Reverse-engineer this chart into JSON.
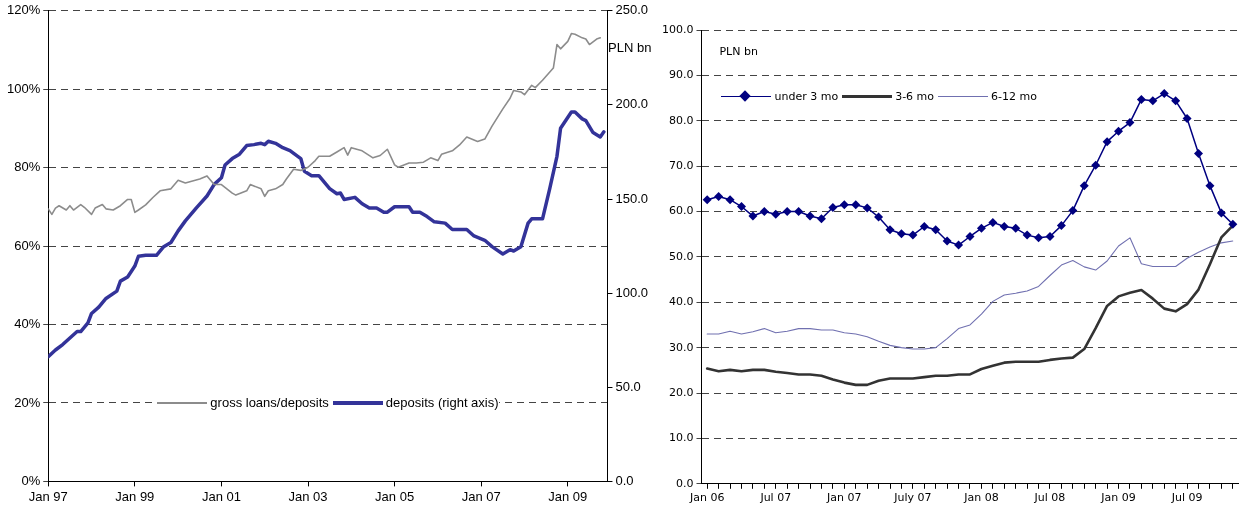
{
  "chart_data": [
    {
      "type": "line",
      "xlim": [
        "1997-01",
        "2009-12"
      ],
      "xticks": [
        {
          "value": "1997-01",
          "label": "Jan 97"
        },
        {
          "value": "1999-01",
          "label": "Jan 99"
        },
        {
          "value": "2001-01",
          "label": "Jan 01"
        },
        {
          "value": "2003-01",
          "label": "Jan 03"
        },
        {
          "value": "2005-01",
          "label": "Jan 05"
        },
        {
          "value": "2007-01",
          "label": "Jan 07"
        },
        {
          "value": "2009-01",
          "label": "Jan 09"
        }
      ],
      "ylim": [
        0,
        120
      ],
      "yticks": [
        {
          "value": 0,
          "label": "0%"
        },
        {
          "value": 20,
          "label": "20%"
        },
        {
          "value": 40,
          "label": "40%"
        },
        {
          "value": 60,
          "label": "60%"
        },
        {
          "value": 80,
          "label": "80%"
        },
        {
          "value": 100,
          "label": "100%"
        },
        {
          "value": 120,
          "label": "120%"
        }
      ],
      "y2lim": [
        0,
        250
      ],
      "y2ticks": [
        {
          "value": 0,
          "label": "0.0"
        },
        {
          "value": 50,
          "label": "50.0"
        },
        {
          "value": 100,
          "label": "100.0"
        },
        {
          "value": 150,
          "label": "150.0"
        },
        {
          "value": 200,
          "label": "200.0"
        },
        {
          "value": 250,
          "label": "250.0"
        }
      ],
      "grid": "y",
      "legend": "bottom",
      "annotations": [
        "PLN bn"
      ],
      "series": [
        {
          "name": "gross loans/deposits",
          "color": "#8c8c8c",
          "x": [
            "1997-01",
            "1997-02",
            "1997-03",
            "1997-04",
            "1997-06",
            "1997-07",
            "1997-08",
            "1997-10",
            "1997-11",
            "1998-01",
            "1998-02",
            "1998-04",
            "1998-05",
            "1998-07",
            "1998-09",
            "1998-11",
            "1998-12",
            "1999-01",
            "1999-02",
            "1999-04",
            "1999-06",
            "1999-08",
            "1999-11",
            "2000-01",
            "2000-03",
            "2000-05",
            "2000-07",
            "2000-09",
            "2000-11",
            "2001-01",
            "2001-04",
            "2001-05",
            "2001-08",
            "2001-09",
            "2001-12",
            "2002-01",
            "2002-02",
            "2002-04",
            "2002-06",
            "2002-07",
            "2002-09",
            "2002-11",
            "2003-01",
            "2003-03",
            "2003-04",
            "2003-07",
            "2003-09",
            "2003-11",
            "2003-12",
            "2004-01",
            "2004-04",
            "2004-07",
            "2004-09",
            "2004-11",
            "2005-01",
            "2005-02",
            "2005-05",
            "2005-07",
            "2005-09",
            "2005-11",
            "2006-01",
            "2006-02",
            "2006-05",
            "2006-07",
            "2006-09",
            "2006-12",
            "2007-02",
            "2007-04",
            "2007-07",
            "2007-09",
            "2007-10",
            "2007-12",
            "2008-01",
            "2008-03",
            "2008-04",
            "2008-06",
            "2008-09",
            "2008-10",
            "2008-11",
            "2009-01",
            "2009-02",
            "2009-03",
            "2009-05",
            "2009-06",
            "2009-07",
            "2009-09",
            "2009-10"
          ],
          "values": [
            69.5,
            68.1,
            69.7,
            70.3,
            69.2,
            70.3,
            69.2,
            70.6,
            69.9,
            68.1,
            69.7,
            70.6,
            69.5,
            69.2,
            70.3,
            71.9,
            71.9,
            68.6,
            69.2,
            70.5,
            72.4,
            74.1,
            74.6,
            76.8,
            76.1,
            76.6,
            77.1,
            77.9,
            75.7,
            75.7,
            73.5,
            73.0,
            74.1,
            75.7,
            74.6,
            72.7,
            74.1,
            74.6,
            75.7,
            77.1,
            79.6,
            79.3,
            80.1,
            81.8,
            82.9,
            82.9,
            84.0,
            85.1,
            83.2,
            85.1,
            84.3,
            82.5,
            83.1,
            84.7,
            80.7,
            80.1,
            81.2,
            81.2,
            81.4,
            82.5,
            81.8,
            83.4,
            84.3,
            85.8,
            87.8,
            86.7,
            87.3,
            90.6,
            95.0,
            97.7,
            99.7,
            99.3,
            98.6,
            101.0,
            100.4,
            102.3,
            105.4,
            111.4,
            110.3,
            112.2,
            114.2,
            114.0,
            113.1,
            112.8,
            111.4,
            112.8,
            113.1
          ]
        },
        {
          "name": "deposits (right axis)",
          "color": "#333399",
          "axis": "y2",
          "x": [
            "1997-01",
            "1997-03",
            "1997-05",
            "1997-07",
            "1997-09",
            "1997-10",
            "1997-12",
            "1998-01",
            "1998-03",
            "1998-05",
            "1998-08",
            "1998-09",
            "1998-11",
            "1999-01",
            "1999-02",
            "1999-04",
            "1999-07",
            "1999-09",
            "1999-11",
            "2000-01",
            "2000-03",
            "2000-06",
            "2000-09",
            "2000-11",
            "2001-01",
            "2001-02",
            "2001-04",
            "2001-06",
            "2001-08",
            "2001-10",
            "2001-12",
            "2002-01",
            "2002-02",
            "2002-04",
            "2002-06",
            "2002-08",
            "2002-11",
            "2002-12",
            "2003-02",
            "2003-04",
            "2003-07",
            "2003-09",
            "2003-10",
            "2003-11",
            "2004-02",
            "2004-04",
            "2004-06",
            "2004-08",
            "2004-10",
            "2004-11",
            "2005-01",
            "2005-03",
            "2005-05",
            "2005-06",
            "2005-08",
            "2005-10",
            "2005-12",
            "2006-03",
            "2006-05",
            "2006-09",
            "2006-11",
            "2007-02",
            "2007-04",
            "2007-07",
            "2007-09",
            "2007-10",
            "2007-12",
            "2008-02",
            "2008-03",
            "2008-06",
            "2008-08",
            "2008-10",
            "2008-11",
            "2009-02",
            "2009-03",
            "2009-05",
            "2009-06",
            "2009-08",
            "2009-10",
            "2009-11"
          ],
          "values": [
            66.3,
            69.8,
            72.7,
            76.2,
            79.6,
            79.6,
            84.2,
            89.2,
            92.6,
            97.2,
            101.1,
            106.4,
            108.6,
            114.4,
            119.6,
            120.1,
            120.1,
            124.7,
            126.9,
            133.1,
            138.4,
            145.2,
            151.6,
            157.8,
            161.3,
            168.1,
            171.5,
            173.8,
            178.4,
            178.9,
            179.6,
            178.9,
            180.7,
            179.6,
            177.3,
            175.7,
            171.5,
            164.7,
            162.4,
            162.4,
            155.5,
            152.8,
            153.2,
            149.8,
            150.9,
            147.5,
            145.2,
            145.2,
            143.0,
            143.0,
            145.9,
            145.9,
            145.9,
            143.0,
            143.0,
            140.7,
            137.9,
            137.2,
            133.8,
            133.8,
            130.4,
            128.1,
            124.7,
            120.8,
            123.1,
            122.4,
            124.7,
            137.2,
            139.5,
            139.5,
            155.5,
            172.7,
            187.6,
            196.2,
            196.2,
            192.6,
            191.7,
            185.3,
            183.0,
            185.7
          ]
        }
      ]
    },
    {
      "type": "line",
      "categories": [
        "Jan 06",
        null,
        null,
        null,
        null,
        null,
        "Jul 07",
        null,
        null,
        null,
        null,
        null,
        "Jan 07",
        null,
        null,
        null,
        null,
        null,
        "July 07",
        null,
        null,
        null,
        null,
        null,
        "Jan 08",
        null,
        null,
        null,
        null,
        null,
        "Jul 08",
        null,
        null,
        null,
        null,
        null,
        "Jan 09",
        null,
        null,
        null,
        null,
        null,
        "Jul 09",
        null,
        null,
        null,
        null
      ],
      "ylim": [
        0,
        100
      ],
      "yticks": [
        {
          "value": 0,
          "label": "0.0"
        },
        {
          "value": 10,
          "label": "10.0"
        },
        {
          "value": 20,
          "label": "20.0"
        },
        {
          "value": 30,
          "label": "30.0"
        },
        {
          "value": 40,
          "label": "40.0"
        },
        {
          "value": 50,
          "label": "50.0"
        },
        {
          "value": 60,
          "label": "60.0"
        },
        {
          "value": 70,
          "label": "70.0"
        },
        {
          "value": 80,
          "label": "80.0"
        },
        {
          "value": 90,
          "label": "90.0"
        },
        {
          "value": 100,
          "label": "100.0"
        }
      ],
      "grid": "y",
      "legend": "top left",
      "annotations": [
        "PLN bn"
      ],
      "series": [
        {
          "name": "under 3 mo",
          "color": "#000080",
          "marker": "diamond",
          "values": [
            62.6,
            63.3,
            62.6,
            61.1,
            59.0,
            60.0,
            59.4,
            60.0,
            60.0,
            59.0,
            58.4,
            60.9,
            61.5,
            61.5,
            60.8,
            58.8,
            56.0,
            55.1,
            54.8,
            56.7,
            56.0,
            53.5,
            52.6,
            54.5,
            56.3,
            57.6,
            56.7,
            56.3,
            54.8,
            54.2,
            54.5,
            56.9,
            60.2,
            65.7,
            70.2,
            75.4,
            77.7,
            79.6,
            84.7,
            84.4,
            86.0,
            84.4,
            80.5,
            72.8,
            65.7,
            59.7,
            57.2
          ]
        },
        {
          "name": "3-6 mo",
          "color": "#333333",
          "values": [
            25.4,
            24.8,
            25.1,
            24.8,
            25.1,
            25.1,
            24.7,
            24.4,
            24.1,
            24.1,
            23.8,
            23.0,
            22.3,
            21.8,
            21.8,
            22.7,
            23.2,
            23.2,
            23.2,
            23.5,
            23.8,
            23.8,
            24.1,
            24.1,
            25.3,
            26.0,
            26.7,
            26.9,
            26.9,
            26.9,
            27.3,
            27.6,
            27.8,
            29.7,
            34.3,
            39.2,
            41.3,
            42.1,
            42.7,
            40.8,
            38.6,
            38.0,
            39.6,
            42.8,
            48.4,
            54.3,
            56.9
          ]
        },
        {
          "name": "6-12 mo",
          "color": "#7070b0",
          "values": [
            33.0,
            33.0,
            33.6,
            33.0,
            33.5,
            34.2,
            33.3,
            33.6,
            34.2,
            34.2,
            33.9,
            33.9,
            33.3,
            33.0,
            32.4,
            31.4,
            30.5,
            30.0,
            29.7,
            29.7,
            30.0,
            32.0,
            34.2,
            35.0,
            37.4,
            40.2,
            41.6,
            42.0,
            42.5,
            43.5,
            45.9,
            48.2,
            49.2,
            47.8,
            47.1,
            49.1,
            52.4,
            54.2,
            48.5,
            47.9,
            47.9,
            47.9,
            49.7,
            51.0,
            52.2,
            53.1,
            53.5
          ]
        }
      ]
    }
  ]
}
